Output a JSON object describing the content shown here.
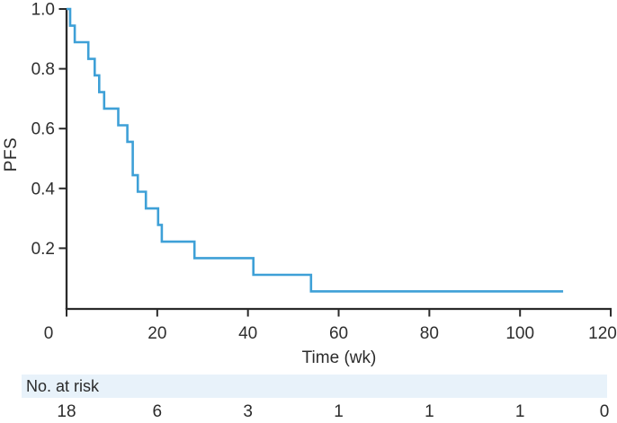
{
  "chart_data": {
    "type": "line",
    "subtype": "kaplan-meier-step",
    "title": "",
    "xlabel": "Time (wk)",
    "ylabel": "PFS",
    "xlim": [
      0,
      120
    ],
    "ylim": [
      0,
      1.0
    ],
    "grid": false,
    "legend": "none",
    "x_axis": {
      "ticks": [
        {
          "value": 0,
          "label": "0"
        },
        {
          "value": 20,
          "label": "20"
        },
        {
          "value": 40,
          "label": "40"
        },
        {
          "value": 60,
          "label": "60"
        },
        {
          "value": 80,
          "label": "80"
        },
        {
          "value": 100,
          "label": "100"
        },
        {
          "value": 120,
          "label": "120"
        }
      ]
    },
    "y_axis": {
      "ticks": [
        {
          "value": 1.0,
          "label": "1.0"
        },
        {
          "value": 0.8,
          "label": "0.8"
        },
        {
          "value": 0.6,
          "label": "0.6"
        },
        {
          "value": 0.4,
          "label": "0.4"
        },
        {
          "value": 0.2,
          "label": "0.2"
        }
      ]
    },
    "series": [
      {
        "name": "PFS",
        "n_initial": 18,
        "steps": [
          [
            0,
            1.0
          ],
          [
            0.8,
            0.944
          ],
          [
            1.8,
            0.889
          ],
          [
            4.8,
            0.833
          ],
          [
            6.2,
            0.778
          ],
          [
            7.2,
            0.722
          ],
          [
            8.3,
            0.667
          ],
          [
            11.4,
            0.611
          ],
          [
            13.4,
            0.556
          ],
          [
            14.6,
            0.444
          ],
          [
            15.7,
            0.389
          ],
          [
            17.5,
            0.333
          ],
          [
            20.2,
            0.278
          ],
          [
            21.0,
            0.222
          ],
          [
            28.2,
            0.167
          ],
          [
            41.2,
            0.111
          ],
          [
            53.9,
            0.056
          ]
        ],
        "end_of_followup_wk": 109.5
      }
    ],
    "at_risk": {
      "label": "No. at risk",
      "times": [
        0,
        20,
        40,
        60,
        80,
        100,
        120
      ],
      "counts": [
        18,
        6,
        3,
        1,
        1,
        1,
        0
      ]
    }
  },
  "colors": {
    "curve": "#3ea0d7",
    "axis": "#2a2a2a",
    "text": "#2e2e2e",
    "risk_band_bg": "#e8f2fa",
    "background": "#ffffff"
  }
}
